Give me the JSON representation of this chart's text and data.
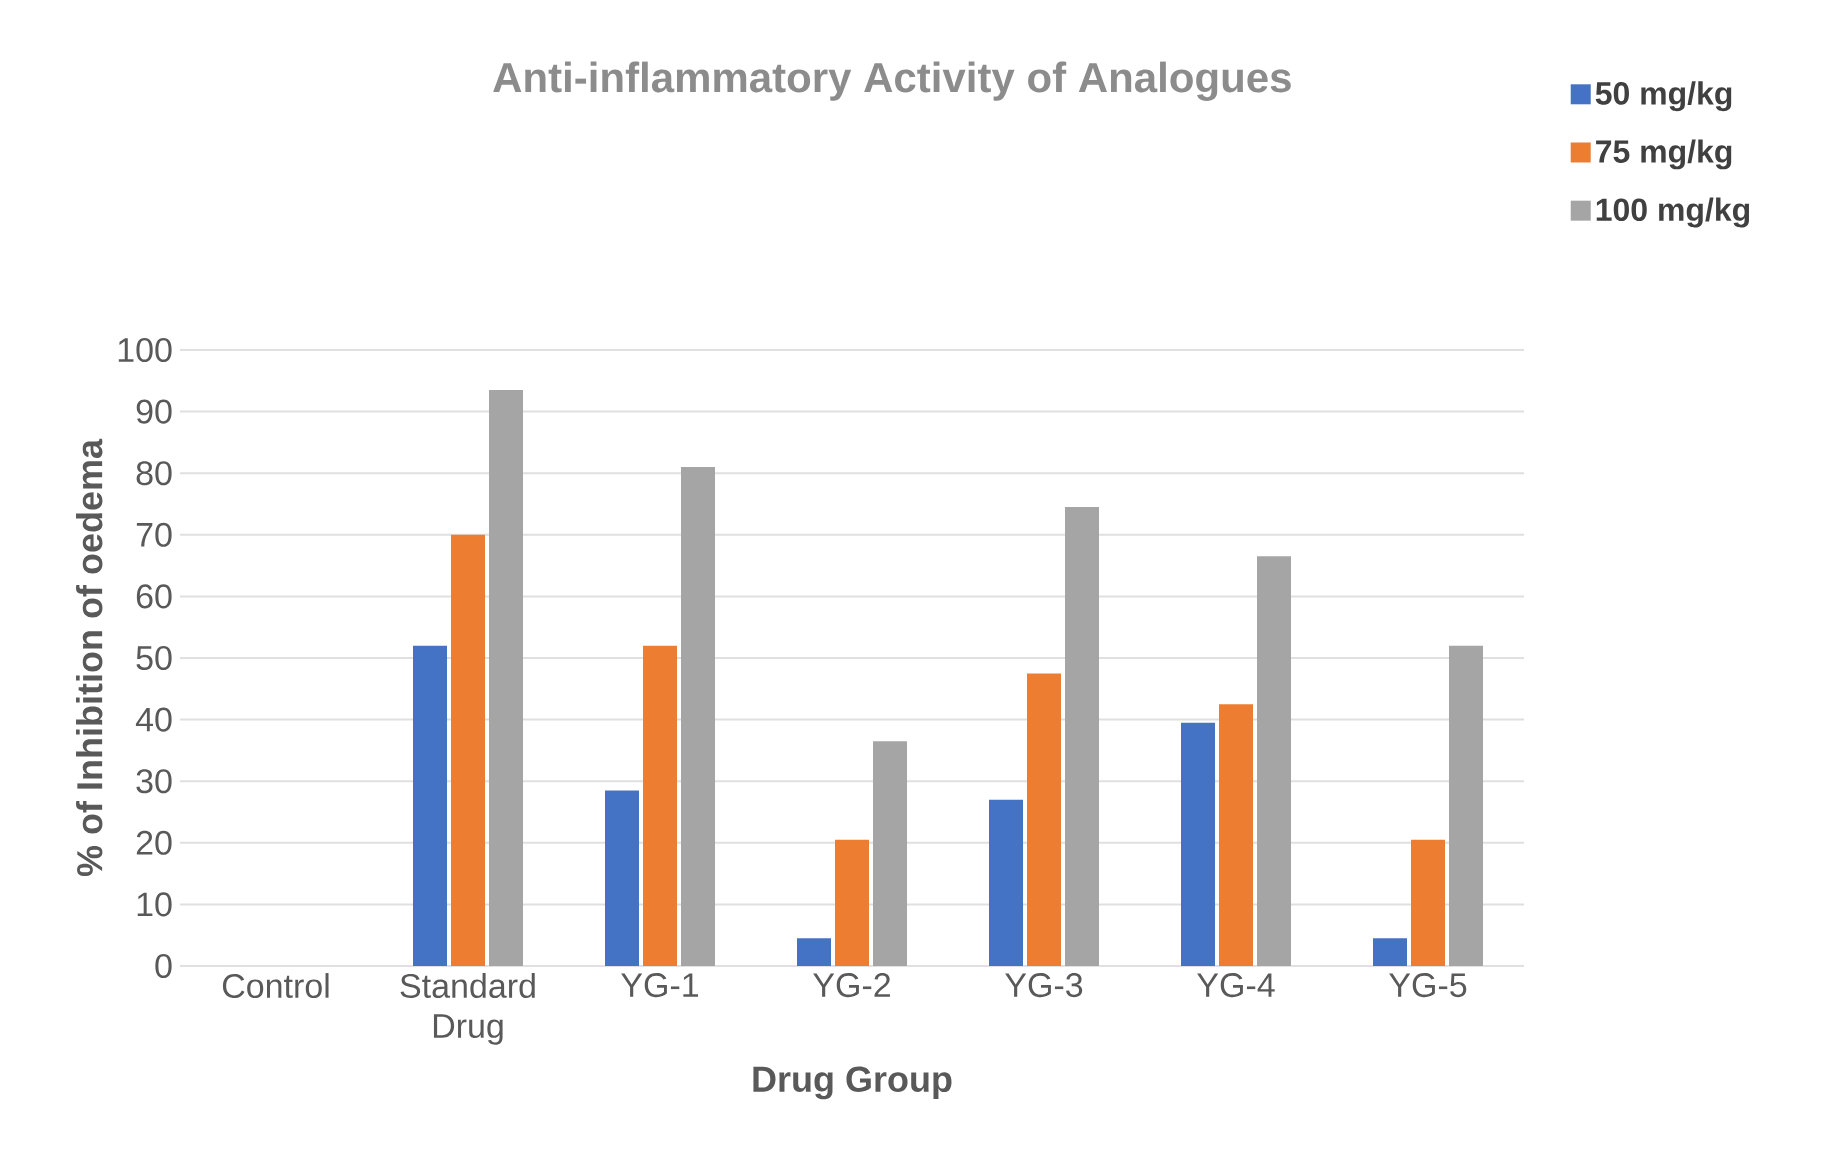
{
  "chart_data": {
    "type": "bar",
    "title": "Anti-inflammatory Activity of Analogues",
    "xlabel": "Drug Group",
    "ylabel": "% of Inhibition of oedema",
    "categories": [
      "Control",
      "Standard Drug",
      "YG-1",
      "YG-2",
      "YG-3",
      "YG-4",
      "YG-5"
    ],
    "series": [
      {
        "name": "50 mg/kg",
        "color": "#4472c4",
        "values": [
          0,
          52,
          28.5,
          4.5,
          27,
          39.5,
          4.5
        ]
      },
      {
        "name": "75 mg/kg",
        "color": "#ed7d31",
        "values": [
          0,
          70,
          52,
          20.5,
          47.5,
          42.5,
          20.5
        ]
      },
      {
        "name": "100 mg/kg",
        "color": "#a5a5a5",
        "values": [
          0,
          93.5,
          81,
          36.5,
          74.5,
          66.5,
          52
        ]
      }
    ],
    "ylim": [
      0,
      100
    ],
    "yticks": [
      0,
      10,
      20,
      30,
      40,
      50,
      60,
      70,
      80,
      90,
      100
    ],
    "grid": "y",
    "legend": "top right"
  }
}
